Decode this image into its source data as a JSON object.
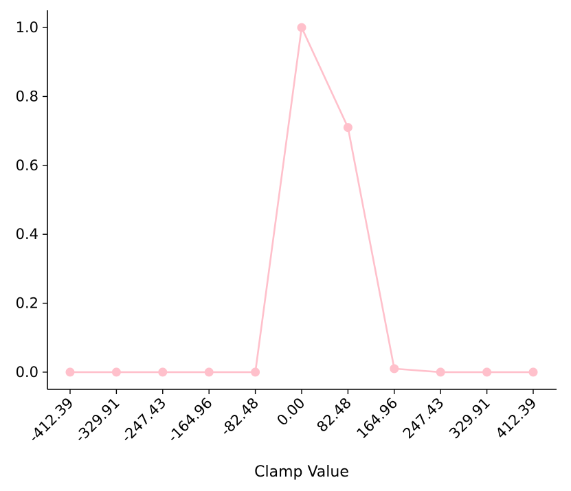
{
  "chart_data": {
    "type": "line",
    "title": "",
    "xlabel": "Clamp Value",
    "ylabel": "",
    "x_tick_labels": [
      "-412.39",
      "-329.91",
      "-247.43",
      "-164.96",
      "-82.48",
      "0.00",
      "82.48",
      "164.96",
      "247.43",
      "329.91",
      "412.39"
    ],
    "y_tick_labels": [
      "0.0",
      "0.2",
      "0.4",
      "0.6",
      "0.8",
      "1.0"
    ],
    "y_ticks": [
      0.0,
      0.2,
      0.4,
      0.6,
      0.8,
      1.0
    ],
    "ylim": [
      -0.05,
      1.05
    ],
    "grid": false,
    "legend": "none",
    "series": [
      {
        "color": "#ffc0cb",
        "marker": "circle",
        "values": [
          0.0,
          0.0,
          0.0,
          0.0,
          0.0,
          1.0,
          0.71,
          0.01,
          0.0,
          0.0,
          0.0
        ]
      }
    ]
  }
}
